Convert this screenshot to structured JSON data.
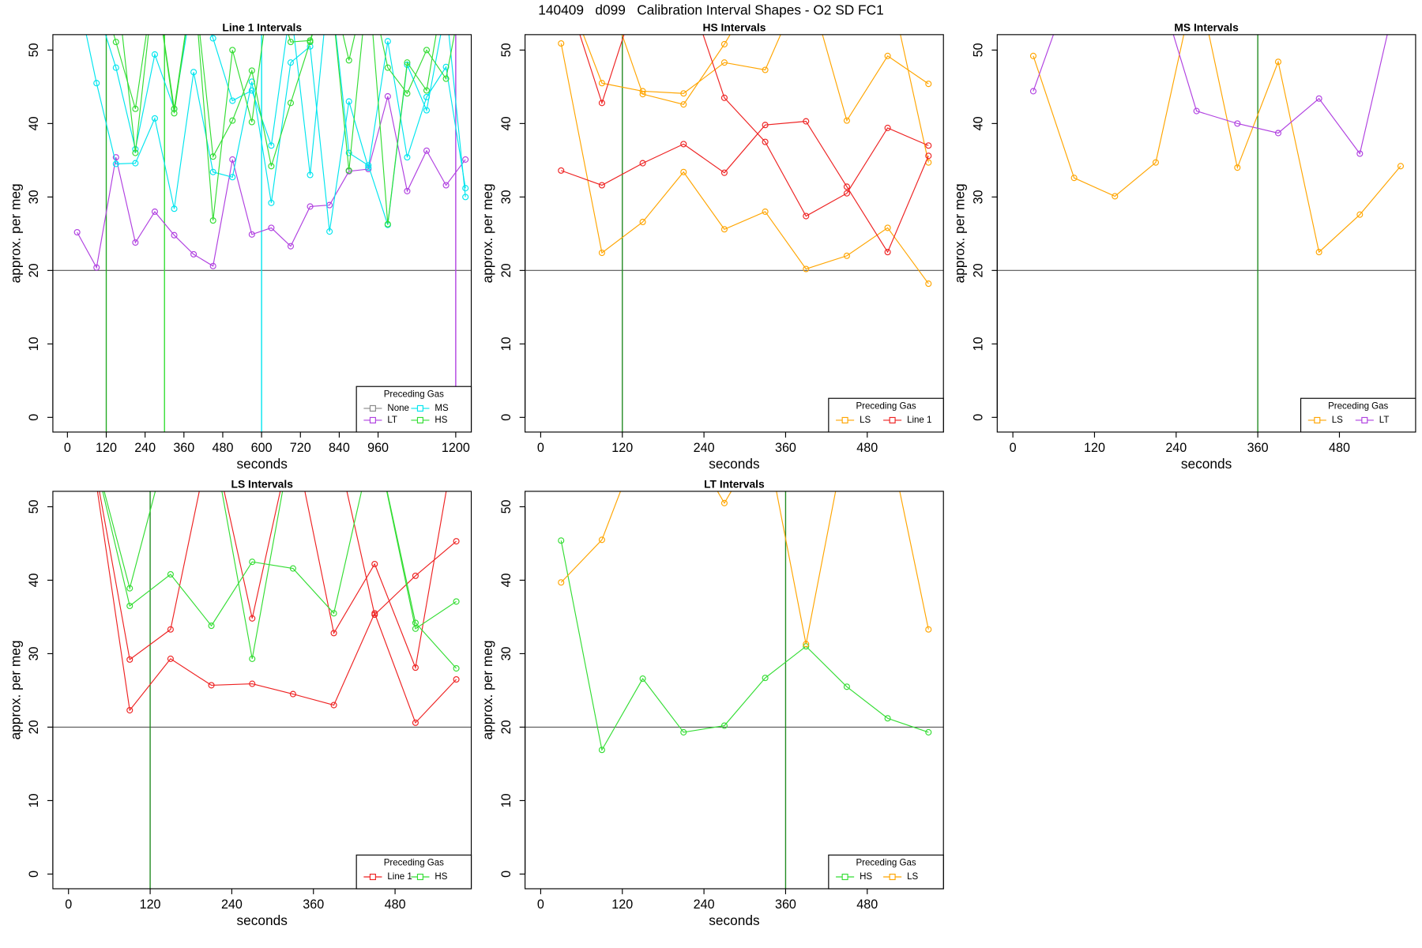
{
  "title": "140409   d099   Calibration Interval Shapes - O2 SD FC1",
  "chart_data": [
    {
      "type": "line",
      "title": "Line 1 Intervals",
      "xlabel": "seconds",
      "ylabel": "approx. per meg",
      "x": [
        30,
        90,
        150,
        210,
        270,
        330,
        390,
        450,
        510,
        570,
        630,
        690,
        750,
        810,
        870,
        930,
        990,
        1050,
        1110,
        1170,
        1230
      ],
      "xlim": [
        -45,
        1248
      ],
      "ylim": [
        -2,
        52.1
      ],
      "xticks": [
        0,
        120,
        240,
        360,
        480,
        600,
        720,
        840,
        960,
        1200
      ],
      "yticks": [
        0,
        10,
        20,
        30,
        40,
        50
      ],
      "hline": 20,
      "hline_color": "#555555",
      "vlines": [
        {
          "x": 120,
          "color": "#22aa22"
        },
        {
          "x": 300,
          "color": "#33dd33"
        },
        {
          "x": 600,
          "color": "#00e5ee"
        },
        {
          "x": 1200,
          "color": "#b040e0"
        }
      ],
      "legend_title": "Preceding Gas",
      "legend": "bottom right",
      "series": [
        {
          "name": "None",
          "color": "#888888",
          "runs": [
            [
              null,
              null,
              null,
              null,
              null,
              null,
              null,
              null,
              null,
              null,
              null,
              null,
              null,
              null,
              33.6,
              null,
              null,
              null,
              null,
              null,
              null
            ]
          ]
        },
        {
          "name": "LT",
          "color": "#b040e0",
          "runs": [
            [
              25.2,
              20.4,
              35.4,
              23.8,
              28.0,
              24.8,
              22.2,
              20.6,
              35.1,
              24.9,
              25.8,
              23.3,
              28.7,
              28.9,
              33.5,
              33.8,
              43.7,
              30.8,
              36.3,
              31.6,
              35.1
            ]
          ]
        },
        {
          "name": "MS",
          "color": "#00e5ee",
          "runs": [
            [
              58,
              45.5,
              34.5,
              34.6,
              40.7,
              28.4,
              47.0,
              33.4,
              32.7,
              45.7,
              29.2,
              48.3,
              50.5,
              25.3,
              43.0,
              34.0,
              51.2,
              35.4,
              43.6,
              47.7,
              31.2
            ],
            [
              60,
              56,
              47.6,
              36.5,
              49.4,
              42.0,
              58,
              51.6,
              43.1,
              44.5,
              37,
              56,
              33,
              60,
              36,
              34.3,
              26.2,
              48.0,
              41.8,
              56,
              30
            ]
          ]
        },
        {
          "name": "HS",
          "color": "#33dd33",
          "runs": [
            [
              null,
              60,
              51.1,
              42.0,
              60,
              41.4,
              60,
              35.5,
              40.4,
              47.2,
              34.2,
              42.8,
              51.1,
              60,
              48.6,
              60,
              47.6,
              44.1,
              50.0,
              46.1,
              60
            ],
            [
              null,
              60,
              60,
              36.0,
              60,
              42.0,
              60,
              26.8,
              50.0,
              40.2,
              60,
              51.1,
              51.3,
              60,
              33.6,
              60,
              26.3,
              48.3,
              44.5,
              60,
              60
            ]
          ]
        }
      ]
    },
    {
      "type": "line",
      "title": "HS Intervals",
      "xlabel": "seconds",
      "ylabel": "approx. per meg",
      "x": [
        30,
        90,
        150,
        210,
        270,
        330,
        390,
        450,
        510,
        570
      ],
      "xlim": [
        -23,
        592
      ],
      "ylim": [
        -2,
        52.1
      ],
      "xticks": [
        0,
        120,
        240,
        360,
        480
      ],
      "yticks": [
        0,
        10,
        20,
        30,
        40,
        50
      ],
      "hline": 20,
      "hline_color": "#555555",
      "vlines": [
        {
          "x": 120,
          "color": "#228b22"
        }
      ],
      "legend_title": "Preceding Gas",
      "legend": "bottom right",
      "series": [
        {
          "name": "LS",
          "color": "#ffa500",
          "runs": [
            [
              50.9,
              22.4,
              26.6,
              33.4,
              25.6,
              28.0,
              20.2,
              22.0,
              25.8,
              18.2
            ],
            [
              60,
              45.5,
              44.4,
              44.1,
              48.3,
              47.3,
              60,
              40.4,
              49.2,
              45.4
            ],
            [
              null,
              60,
              44.0,
              42.6,
              50.8,
              60,
              60,
              60,
              60,
              34.7
            ]
          ]
        },
        {
          "name": "Line 1",
          "color": "#ee2222",
          "runs": [
            [
              33.6,
              31.6,
              34.6,
              37.2,
              33.3,
              39.8,
              40.3,
              31.4,
              22.5,
              35.6
            ],
            [
              60,
              42.8,
              60,
              60,
              43.5,
              37.5,
              27.4,
              30.5,
              39.4,
              37.0
            ]
          ]
        }
      ]
    },
    {
      "type": "line",
      "title": "MS Intervals",
      "xlabel": "seconds",
      "ylabel": "approx. per meg",
      "x": [
        30,
        90,
        150,
        210,
        270,
        330,
        390,
        450,
        510,
        570
      ],
      "xlim": [
        -23,
        592
      ],
      "ylim": [
        -2,
        52.1
      ],
      "xticks": [
        0,
        120,
        240,
        360,
        480
      ],
      "yticks": [
        0,
        10,
        20,
        30,
        40,
        50
      ],
      "hline": 20,
      "hline_color": "#555555",
      "vlines": [
        {
          "x": 360,
          "color": "#228b22"
        }
      ],
      "legend_title": "Preceding Gas",
      "legend": "bottom right",
      "series": [
        {
          "name": "LS",
          "color": "#ffa500",
          "runs": [
            [
              49.2,
              32.6,
              30.1,
              34.7,
              60,
              34.0,
              48.4,
              22.5,
              27.6,
              34.2
            ]
          ]
        },
        {
          "name": "LT",
          "color": "#b040e0",
          "runs": [
            [
              44.4,
              60,
              60,
              60,
              41.7,
              40.0,
              38.7,
              43.4,
              35.9,
              60
            ]
          ]
        }
      ]
    },
    {
      "type": "line",
      "title": "LS Intervals",
      "xlabel": "seconds",
      "ylabel": "approx. per meg",
      "x": [
        30,
        90,
        150,
        210,
        270,
        330,
        390,
        450,
        510,
        570
      ],
      "xlim": [
        -23,
        592
      ],
      "ylim": [
        -2,
        52.1
      ],
      "xticks": [
        0,
        120,
        240,
        360,
        480
      ],
      "yticks": [
        0,
        10,
        20,
        30,
        40,
        50
      ],
      "hline": 20,
      "hline_color": "#555555",
      "vlines": [
        {
          "x": 120,
          "color": "#228b22"
        }
      ],
      "legend_title": "Preceding Gas",
      "legend": "bottom right",
      "series": [
        {
          "name": "Line 1",
          "color": "#ee2222",
          "runs": [
            [
              60,
              22.3,
              29.3,
              25.7,
              25.9,
              24.5,
              23.0,
              35.5,
              20.6,
              26.5
            ],
            [
              60,
              29.2,
              33.3,
              60,
              34.8,
              60,
              32.8,
              42.2,
              28.1,
              60
            ],
            [
              null,
              60,
              60,
              60,
              60,
              60,
              60,
              35.3,
              40.6,
              45.3
            ]
          ]
        },
        {
          "name": "HS",
          "color": "#33dd33",
          "runs": [
            [
              60,
              36.5,
              40.8,
              33.8,
              42.5,
              41.6,
              35.5,
              60,
              33.4,
              37.1
            ],
            [
              60,
              38.9,
              60,
              60,
              29.3,
              60,
              60,
              60,
              34.2,
              28.0
            ]
          ]
        }
      ]
    },
    {
      "type": "line",
      "title": "LT Intervals",
      "xlabel": "seconds",
      "ylabel": "approx. per meg",
      "x": [
        30,
        90,
        150,
        210,
        270,
        330,
        390,
        450,
        510,
        570
      ],
      "xlim": [
        -23,
        592
      ],
      "ylim": [
        -2,
        52.1
      ],
      "xticks": [
        0,
        120,
        240,
        360,
        480
      ],
      "yticks": [
        0,
        10,
        20,
        30,
        40,
        50
      ],
      "hline": 20,
      "hline_color": "#555555",
      "vlines": [
        {
          "x": 360,
          "color": "#228b22"
        }
      ],
      "legend_title": "Preceding Gas",
      "legend": "bottom right",
      "series": [
        {
          "name": "HS",
          "color": "#33dd33",
          "runs": [
            [
              45.4,
              16.9,
              26.6,
              19.3,
              20.2,
              26.7,
              31.0,
              25.5,
              21.2,
              19.3
            ]
          ]
        },
        {
          "name": "LS",
          "color": "#ffa500",
          "runs": [
            [
              39.7,
              45.5,
              60,
              60,
              50.5,
              60,
              31.3,
              60,
              60,
              33.3
            ]
          ]
        }
      ]
    }
  ]
}
